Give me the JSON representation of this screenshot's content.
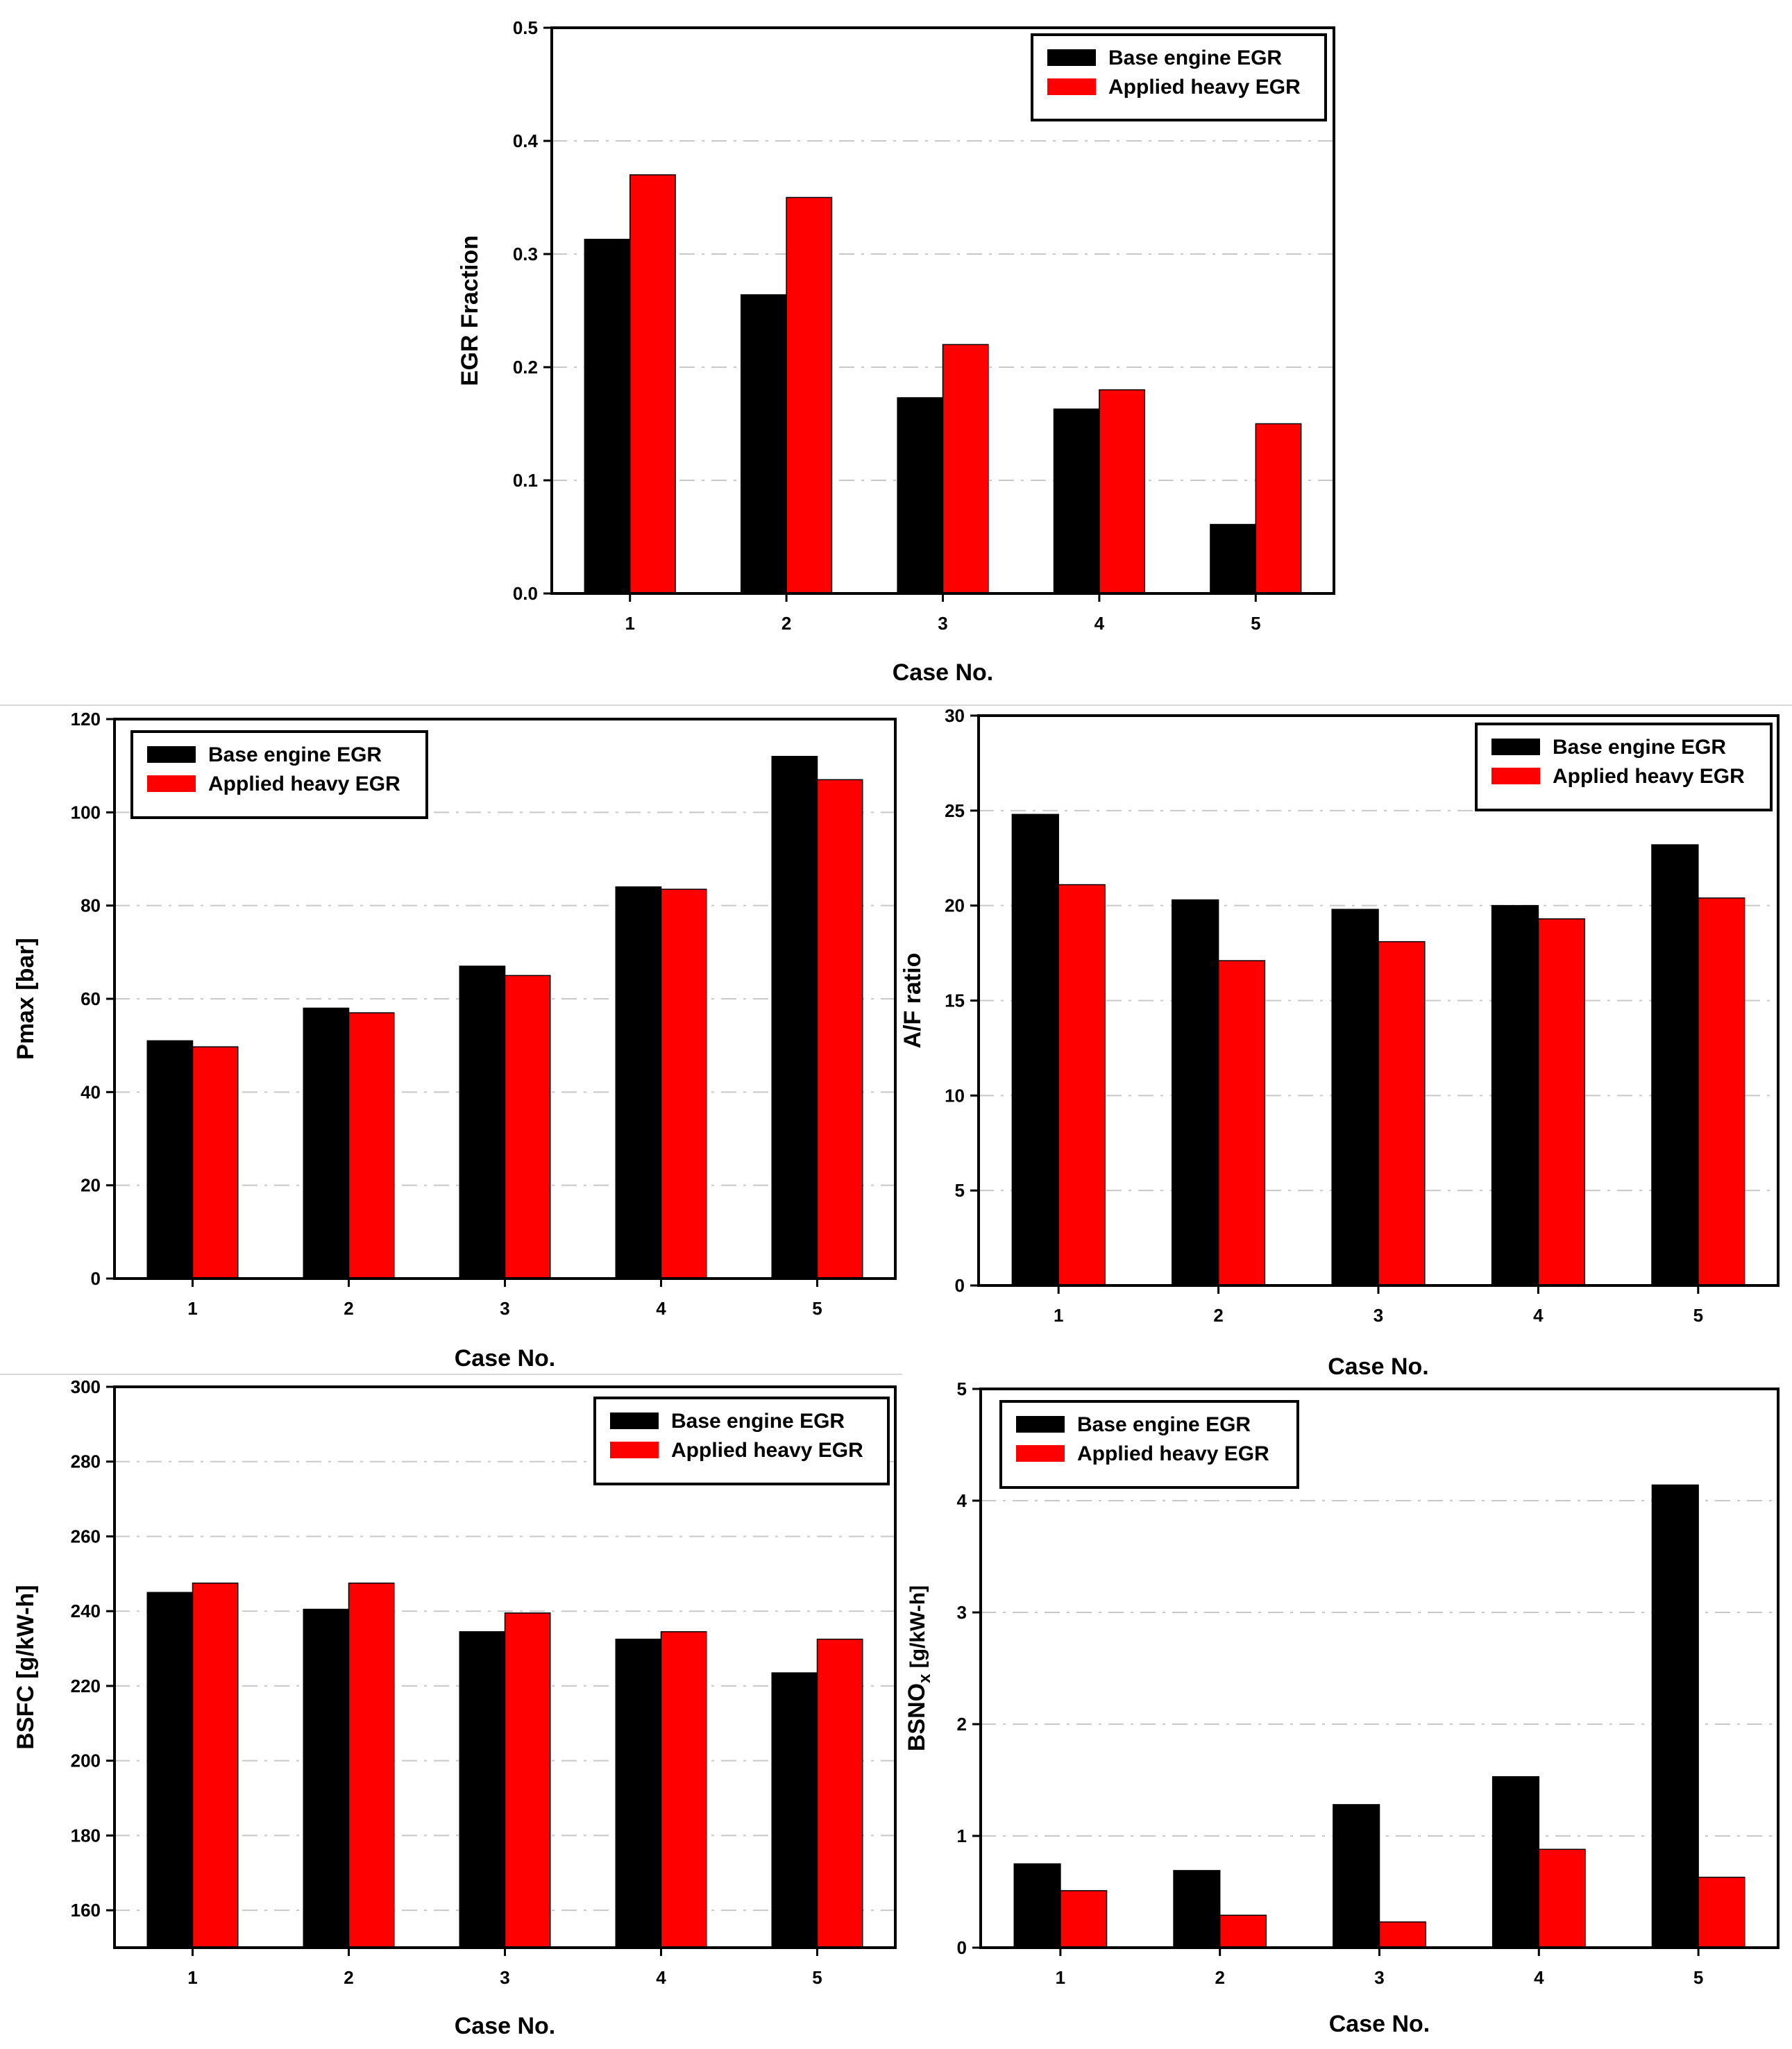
{
  "colors": {
    "base": "#000000",
    "heavy": "#ff0000",
    "frame": "#000000",
    "grid": "#c8c8c8"
  },
  "chart_data": [
    {
      "id": "egr",
      "type": "bar",
      "categories": [
        "1",
        "2",
        "3",
        "4",
        "5"
      ],
      "series": [
        {
          "name": "Base engine EGR",
          "values": [
            0.313,
            0.264,
            0.173,
            0.163,
            0.061
          ]
        },
        {
          "name": "Applied heavy EGR",
          "values": [
            0.37,
            0.35,
            0.22,
            0.18,
            0.15
          ]
        }
      ],
      "xlabel": "Case No.",
      "ylabel": "EGR Fraction",
      "ylim": [
        0,
        0.5
      ],
      "yticks": [
        "0.0",
        "0.1",
        "0.2",
        "0.3",
        "0.4",
        "0.5"
      ],
      "legend": "top-right",
      "grid": true
    },
    {
      "id": "pmax",
      "type": "bar",
      "categories": [
        "1",
        "2",
        "3",
        "4",
        "5"
      ],
      "series": [
        {
          "name": "Base engine EGR",
          "values": [
            51,
            58,
            67,
            84,
            112
          ]
        },
        {
          "name": "Applied heavy EGR",
          "values": [
            49.7,
            57,
            65,
            83.5,
            107
          ]
        }
      ],
      "xlabel": "Case No.",
      "ylabel": "Pmax [bar]",
      "ylim": [
        0,
        120
      ],
      "yticks": [
        "0",
        "20",
        "40",
        "60",
        "80",
        "100",
        "120"
      ],
      "legend": "top-left",
      "grid": true
    },
    {
      "id": "af",
      "type": "bar",
      "categories": [
        "1",
        "2",
        "3",
        "4",
        "5"
      ],
      "series": [
        {
          "name": "Base engine EGR",
          "values": [
            24.8,
            20.3,
            19.8,
            20,
            23.2
          ]
        },
        {
          "name": "Applied heavy EGR",
          "values": [
            21.1,
            17.1,
            18.1,
            19.3,
            20.4
          ]
        }
      ],
      "xlabel": "Case No.",
      "ylabel": "A/F ratio",
      "ylim": [
        0,
        30
      ],
      "yticks": [
        "0",
        "5",
        "10",
        "15",
        "20",
        "25",
        "30"
      ],
      "legend": "top-right",
      "grid": true
    },
    {
      "id": "bsfc",
      "type": "bar",
      "categories": [
        "1",
        "2",
        "3",
        "4",
        "5"
      ],
      "series": [
        {
          "name": "Base engine EGR",
          "values": [
            245,
            240.5,
            234.5,
            232.5,
            223.5
          ]
        },
        {
          "name": "Applied heavy EGR",
          "values": [
            247.5,
            247.5,
            239.5,
            234.5,
            232.5
          ]
        }
      ],
      "xlabel": "Case No.",
      "ylabel": "BSFC [g/kW-h]",
      "ylim": [
        150,
        300
      ],
      "yticks": [
        "160",
        "180",
        "200",
        "220",
        "240",
        "260",
        "280",
        "300"
      ],
      "legend": "top-right",
      "grid": true
    },
    {
      "id": "bsnox",
      "type": "bar",
      "categories": [
        "1",
        "2",
        "3",
        "4",
        "5"
      ],
      "series": [
        {
          "name": "Base engine EGR",
          "values": [
            0.75,
            0.69,
            1.28,
            1.53,
            4.14
          ]
        },
        {
          "name": "Applied heavy EGR",
          "values": [
            0.51,
            0.29,
            0.23,
            0.88,
            0.63
          ]
        }
      ],
      "xlabel": "Case No.",
      "ylabel": "BSNOx [g/kW-h]",
      "ylabel_parts": [
        "BSNO",
        "x",
        " [g/kW-h]"
      ],
      "ylim": [
        0,
        5
      ],
      "yticks": [
        "0",
        "1",
        "2",
        "3",
        "4",
        "5"
      ],
      "legend": "top-left",
      "grid": true
    }
  ]
}
